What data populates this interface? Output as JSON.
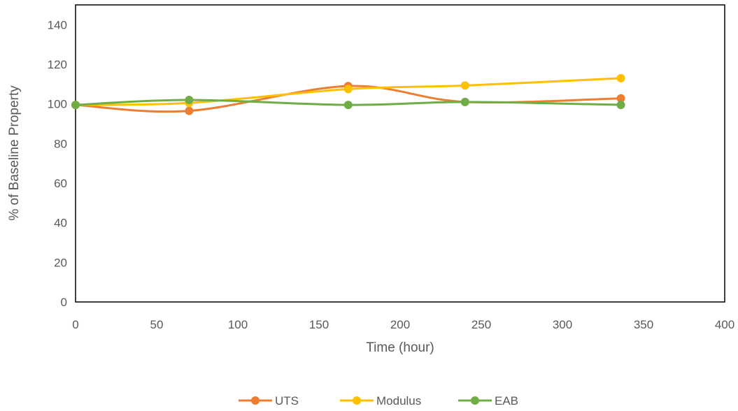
{
  "chart_data": {
    "type": "line",
    "smooth": true,
    "title": "",
    "xlabel": "Time (hour)",
    "ylabel": "% of Baseline Property",
    "xlim": [
      0,
      400
    ],
    "ylim": [
      0,
      150
    ],
    "x_ticks": [
      "0",
      "50",
      "100",
      "150",
      "200",
      "250",
      "300",
      "350",
      "400"
    ],
    "y_ticks": [
      "0",
      "20",
      "40",
      "60",
      "80",
      "100",
      "120",
      "140"
    ],
    "grid": false,
    "legend_position": "bottom",
    "series": [
      {
        "name": "UTS",
        "color": "#ED7D31",
        "points": [
          [
            0,
            99.5
          ],
          [
            70,
            96.5
          ],
          [
            168,
            109
          ],
          [
            240,
            101
          ],
          [
            336,
            102.8
          ]
        ]
      },
      {
        "name": "Modulus",
        "color": "#FFC000",
        "points": [
          [
            0,
            99.5
          ],
          [
            70,
            100.5
          ],
          [
            168,
            107.5
          ],
          [
            240,
            109.3
          ],
          [
            336,
            113
          ]
        ]
      },
      {
        "name": "EAB",
        "color": "#70AD47",
        "points": [
          [
            0,
            99.5
          ],
          [
            70,
            102
          ],
          [
            168,
            99.5
          ],
          [
            240,
            101
          ],
          [
            336,
            99.5
          ]
        ]
      }
    ]
  }
}
